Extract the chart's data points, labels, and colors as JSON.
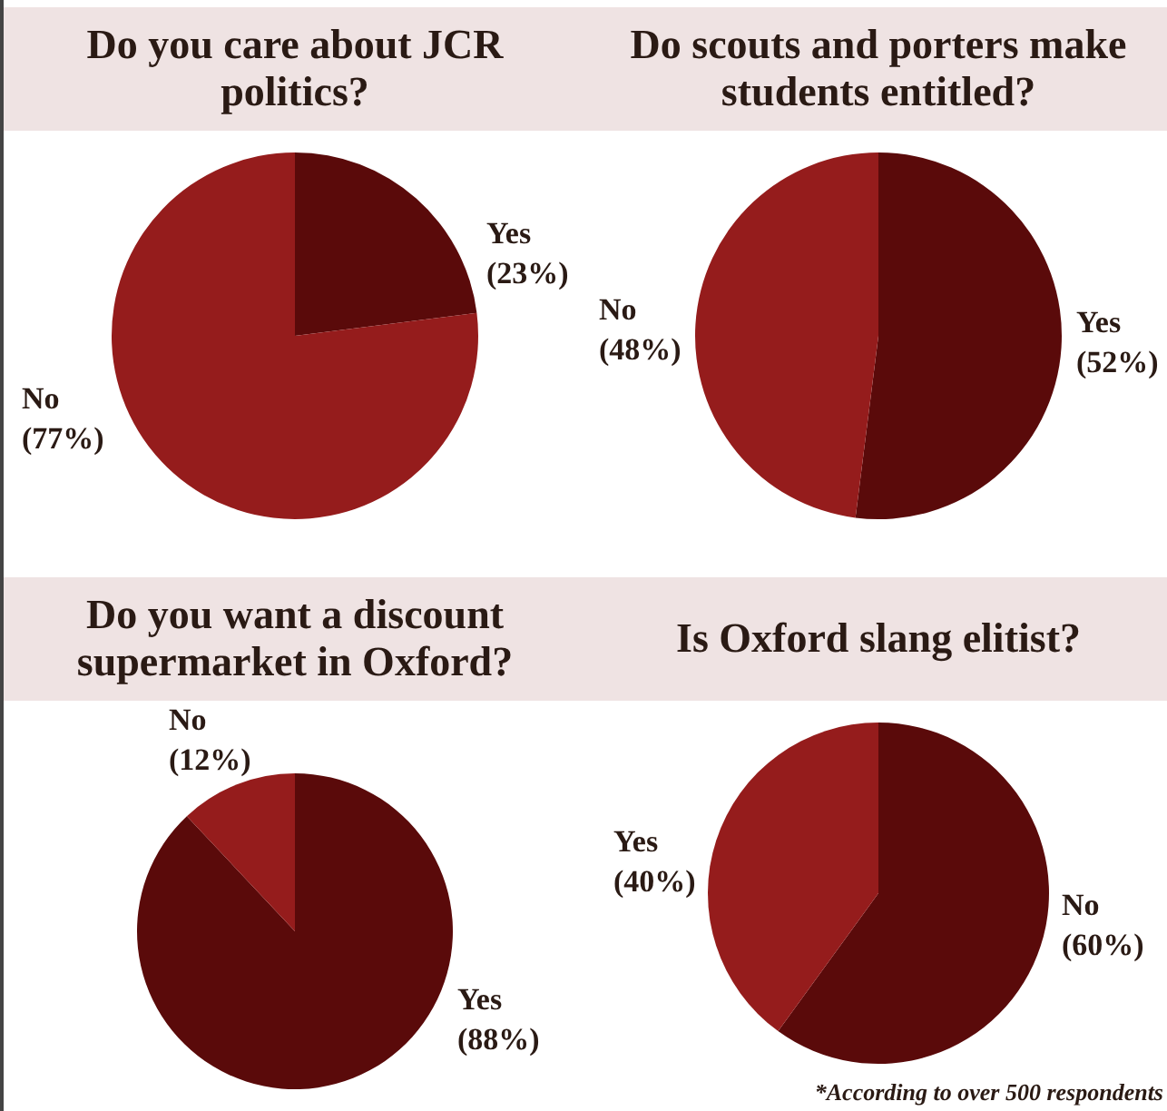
{
  "chart_data": [
    {
      "type": "pie",
      "title": "Do you care about JCR politics?",
      "categories": [
        "Yes",
        "No"
      ],
      "values": [
        23,
        77
      ],
      "colors": [
        "#5a0a0a",
        "#951c1c"
      ],
      "value_labels": [
        "(23%)",
        "(77%)"
      ],
      "legend": false
    },
    {
      "type": "pie",
      "title": "Do scouts and porters make students entitled?",
      "categories": [
        "Yes",
        "No"
      ],
      "values": [
        52,
        48
      ],
      "colors": [
        "#5a0a0a",
        "#951c1c"
      ],
      "value_labels": [
        "(52%)",
        "(48%)"
      ],
      "legend": false
    },
    {
      "type": "pie",
      "title": "Do you want a discount supermarket in Oxford?",
      "categories": [
        "Yes",
        "No"
      ],
      "values": [
        88,
        12
      ],
      "colors": [
        "#5a0a0a",
        "#951c1c"
      ],
      "value_labels": [
        "(88%)",
        "(12%)"
      ],
      "legend": false
    },
    {
      "type": "pie",
      "title": "Is Oxford slang elitist?",
      "categories": [
        "No",
        "Yes"
      ],
      "values": [
        60,
        40
      ],
      "colors": [
        "#5a0a0a",
        "#951c1c"
      ],
      "value_labels": [
        "(60%)",
        "(40%)"
      ],
      "legend": false,
      "annotations": [
        "*According to over 500 respondents"
      ]
    }
  ]
}
